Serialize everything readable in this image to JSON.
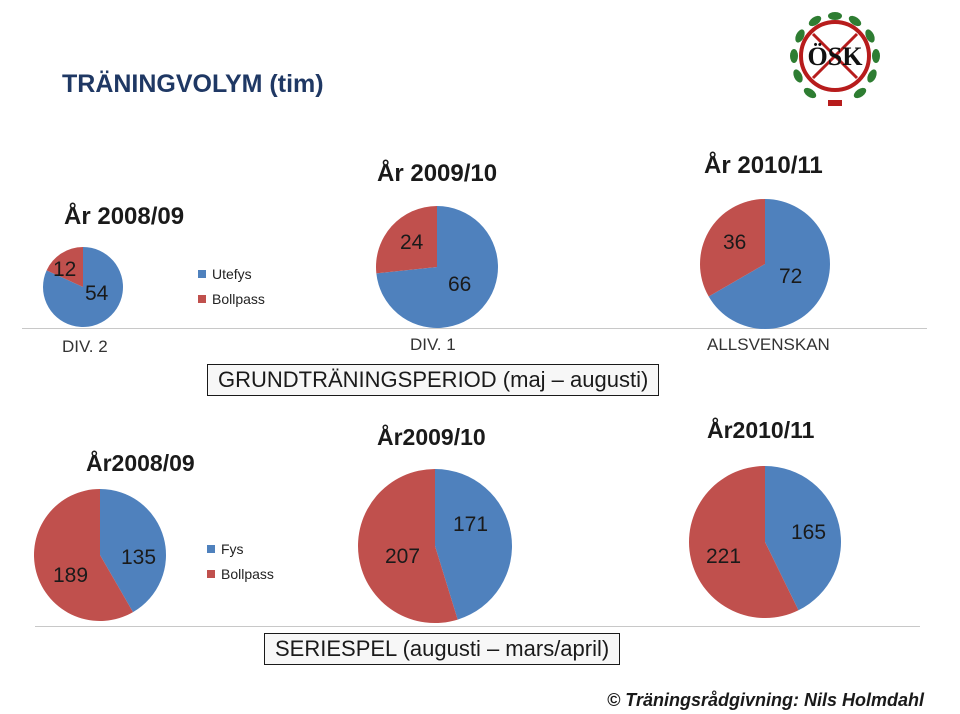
{
  "title": "TRÄNINGVOLYM (tim)",
  "colors": {
    "series_a": "#4f81bd",
    "series_b": "#c0504d"
  },
  "top": {
    "legend": [
      "Utefys",
      "Bollpass"
    ],
    "period_label": "GRUNDTRÄNINGSPERIOD (maj – augusti)",
    "years": [
      "År 2008/09",
      "År 2009/10",
      "År 2010/11"
    ],
    "divisions": [
      "DIV. 2",
      "DIV. 1",
      "ALLSVENSKAN"
    ]
  },
  "bottom": {
    "legend": [
      "Fys",
      "Bollpass"
    ],
    "period_label": "SERIESPEL (augusti – mars/april)",
    "years": [
      "År2008/09",
      "År2009/10",
      "År2010/11"
    ]
  },
  "footer": "© Träningsrådgivning: Nils Holmdahl",
  "logo_text": "ÖSK",
  "chart_data": [
    {
      "type": "pie",
      "title": "År 2008/09",
      "categories": [
        "Utefys",
        "Bollpass"
      ],
      "values": [
        54,
        12
      ]
    },
    {
      "type": "pie",
      "title": "År 2009/10",
      "categories": [
        "Utefys",
        "Bollpass"
      ],
      "values": [
        66,
        24
      ]
    },
    {
      "type": "pie",
      "title": "År 2010/11",
      "categories": [
        "Utefys",
        "Bollpass"
      ],
      "values": [
        72,
        36
      ]
    },
    {
      "type": "pie",
      "title": "År2008/09",
      "categories": [
        "Fys",
        "Bollpass"
      ],
      "values": [
        135,
        189
      ]
    },
    {
      "type": "pie",
      "title": "År2009/10",
      "categories": [
        "Fys",
        "Bollpass"
      ],
      "values": [
        171,
        207
      ]
    },
    {
      "type": "pie",
      "title": "År2010/11",
      "categories": [
        "Fys",
        "Bollpass"
      ],
      "values": [
        165,
        221
      ]
    }
  ]
}
